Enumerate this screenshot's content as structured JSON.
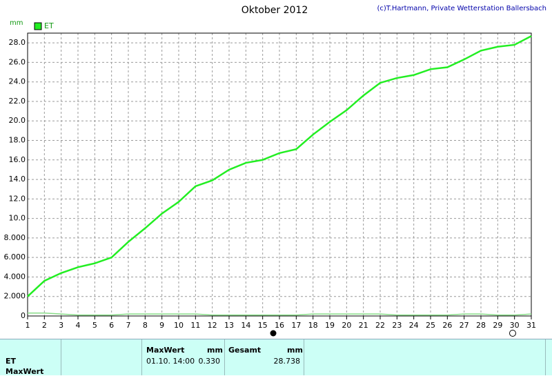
{
  "chart_data": {
    "type": "line",
    "title": "Oktober 2012",
    "credit": "(c)T.Hartmann, Private Wetterstation Ballersbach",
    "y_label": "mm",
    "x": [
      1,
      2,
      3,
      4,
      5,
      6,
      7,
      8,
      9,
      10,
      11,
      12,
      13,
      14,
      15,
      16,
      17,
      18,
      19,
      20,
      21,
      22,
      23,
      24,
      25,
      26,
      27,
      28,
      29,
      30,
      31
    ],
    "xlim": [
      1,
      31
    ],
    "xticks": [
      1,
      2,
      3,
      4,
      5,
      6,
      7,
      8,
      9,
      10,
      11,
      12,
      13,
      14,
      15,
      16,
      17,
      18,
      19,
      20,
      21,
      22,
      23,
      24,
      25,
      26,
      27,
      28,
      29,
      30,
      31
    ],
    "ylim": [
      0,
      29
    ],
    "yticks": [
      0,
      {
        "value": 2,
        "label": "2.000"
      },
      {
        "value": 4,
        "label": "4.000"
      },
      {
        "value": 6,
        "label": "6.000"
      },
      {
        "value": 8,
        "label": "8.000"
      },
      {
        "value": 10,
        "label": "10.0"
      },
      {
        "value": 12,
        "label": "12.0"
      },
      {
        "value": 14,
        "label": "14.0"
      },
      {
        "value": 16,
        "label": "16.0"
      },
      {
        "value": 18,
        "label": "18.0"
      },
      {
        "value": 20,
        "label": "20.0"
      },
      {
        "value": 22,
        "label": "22.0"
      },
      {
        "value": 24,
        "label": "24.0"
      },
      {
        "value": 26,
        "label": "26.0"
      },
      {
        "value": 28,
        "label": "28.0"
      }
    ],
    "grid": true,
    "legend": "top-left",
    "series": [
      {
        "name": "ET",
        "color": "#22ee22",
        "values": [
          2.0,
          3.6,
          4.4,
          5.0,
          5.4,
          6.0,
          7.6,
          9.0,
          10.5,
          11.7,
          13.3,
          13.9,
          15.0,
          15.7,
          16.0,
          16.7,
          17.1,
          18.6,
          19.9,
          21.1,
          22.6,
          23.9,
          24.4,
          24.7,
          25.3,
          25.5,
          26.3,
          27.2,
          27.6,
          27.8,
          28.7
        ]
      },
      {
        "color": "#88dd88",
        "values": [
          0.3,
          0.3,
          0.2,
          0.1,
          0.1,
          0.1,
          0.2,
          0.2,
          0.2,
          0.2,
          0.2,
          0.1,
          0.1,
          0.1,
          0.1,
          0.1,
          0.1,
          0.2,
          0.2,
          0.2,
          0.2,
          0.2,
          0.1,
          0.1,
          0.1,
          0.1,
          0.2,
          0.2,
          0.1,
          0.1,
          0.2
        ]
      }
    ]
  },
  "table": {
    "header": [
      "MaxWert",
      "mm",
      "Gesamt",
      "mm"
    ],
    "rows": [
      [
        "ET",
        "01.10. 14:00",
        "0.330",
        "28.738"
      ],
      [
        "MaxWert"
      ]
    ]
  }
}
